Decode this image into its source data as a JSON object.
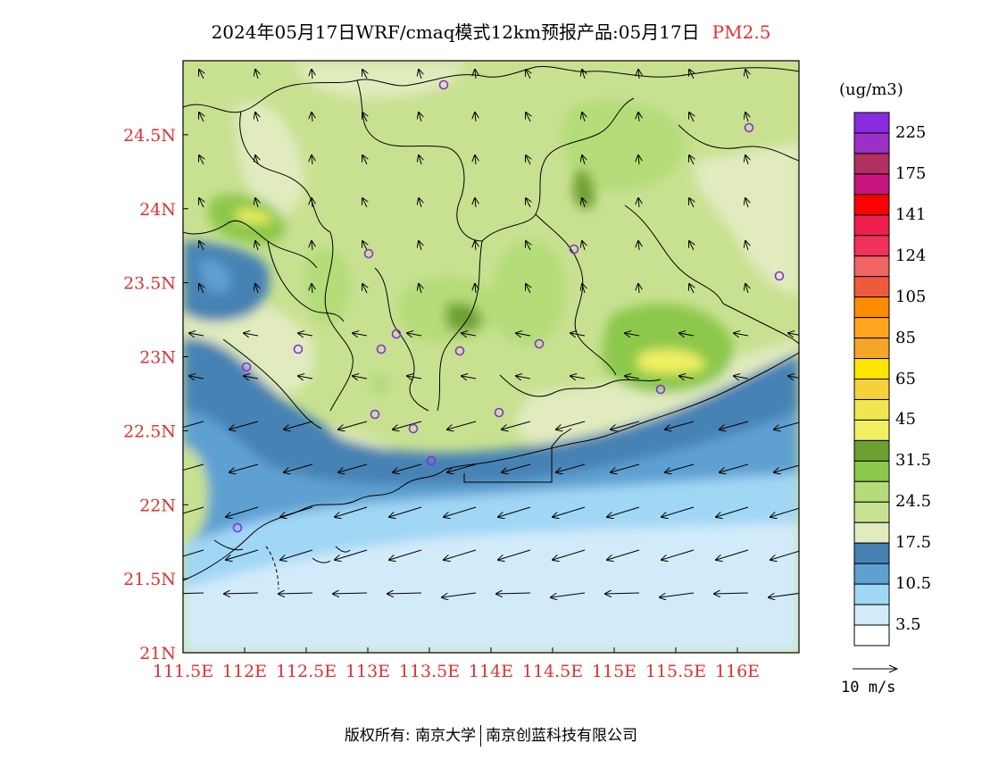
{
  "title": {
    "main": "2024年05月17日WRF/cmaq模式12km预报产品:05月17日",
    "pollutant": "PM2.5",
    "pollutant_color": "#e03030"
  },
  "map": {
    "x_ticks": [
      "111.5E",
      "112E",
      "112.5E",
      "113E",
      "113.5E",
      "114E",
      "114.5E",
      "115E",
      "115.5E",
      "116E"
    ],
    "x_tick_values": [
      111.5,
      112,
      112.5,
      113,
      113.5,
      114,
      114.5,
      115,
      115.5,
      116
    ],
    "y_ticks": [
      "21N",
      "21.5N",
      "22N",
      "22.5N",
      "23N",
      "23.5N",
      "24N",
      "24.5N"
    ],
    "y_tick_values": [
      21,
      21.5,
      22,
      22.5,
      23,
      23.5,
      24,
      24.5
    ],
    "lon_range": [
      111.5,
      116.5
    ],
    "lat_range": [
      21,
      25
    ],
    "tick_label_color": "#e03030",
    "station_marker_color": "#8a2be2"
  },
  "legend": {
    "units": "(ug/m3)",
    "bins": [
      {
        "color": "#8a2be2",
        "label": "225"
      },
      {
        "color": "#9b30c8",
        "label": ""
      },
      {
        "color": "#b03060",
        "label": "175"
      },
      {
        "color": "#c8147e",
        "label": ""
      },
      {
        "color": "#ff0000",
        "label": "141"
      },
      {
        "color": "#f01e4b",
        "label": ""
      },
      {
        "color": "#f0325a",
        "label": "124"
      },
      {
        "color": "#f06464",
        "label": ""
      },
      {
        "color": "#f05a3c",
        "label": "105"
      },
      {
        "color": "#ff8c00",
        "label": ""
      },
      {
        "color": "#ffa51e",
        "label": "85"
      },
      {
        "color": "#f5a528",
        "label": ""
      },
      {
        "color": "#ffe400",
        "label": "65"
      },
      {
        "color": "#f5d23c",
        "label": ""
      },
      {
        "color": "#f0e650",
        "label": "45"
      },
      {
        "color": "#f0f064",
        "label": ""
      },
      {
        "color": "#6ea032",
        "label": "31.5"
      },
      {
        "color": "#8cc84b",
        "label": ""
      },
      {
        "color": "#b4dc78",
        "label": "24.5"
      },
      {
        "color": "#c8e191",
        "label": ""
      },
      {
        "color": "#e1ebbe",
        "label": "17.5"
      },
      {
        "color": "#4682b4",
        "label": ""
      },
      {
        "color": "#5fa0d2",
        "label": "10.5"
      },
      {
        "color": "#a0d7f5",
        "label": ""
      },
      {
        "color": "#d2ebfa",
        "label": "3.5"
      },
      {
        "color": "#ffffff",
        "label": ""
      }
    ]
  },
  "wind_reference": {
    "label": "10 m/s",
    "icon": "wind-reference-arrow-icon"
  },
  "copyright": {
    "prefix": "版权所有:",
    "org1": "南京大学",
    "org2": "南京创蓝科技有限公司"
  }
}
